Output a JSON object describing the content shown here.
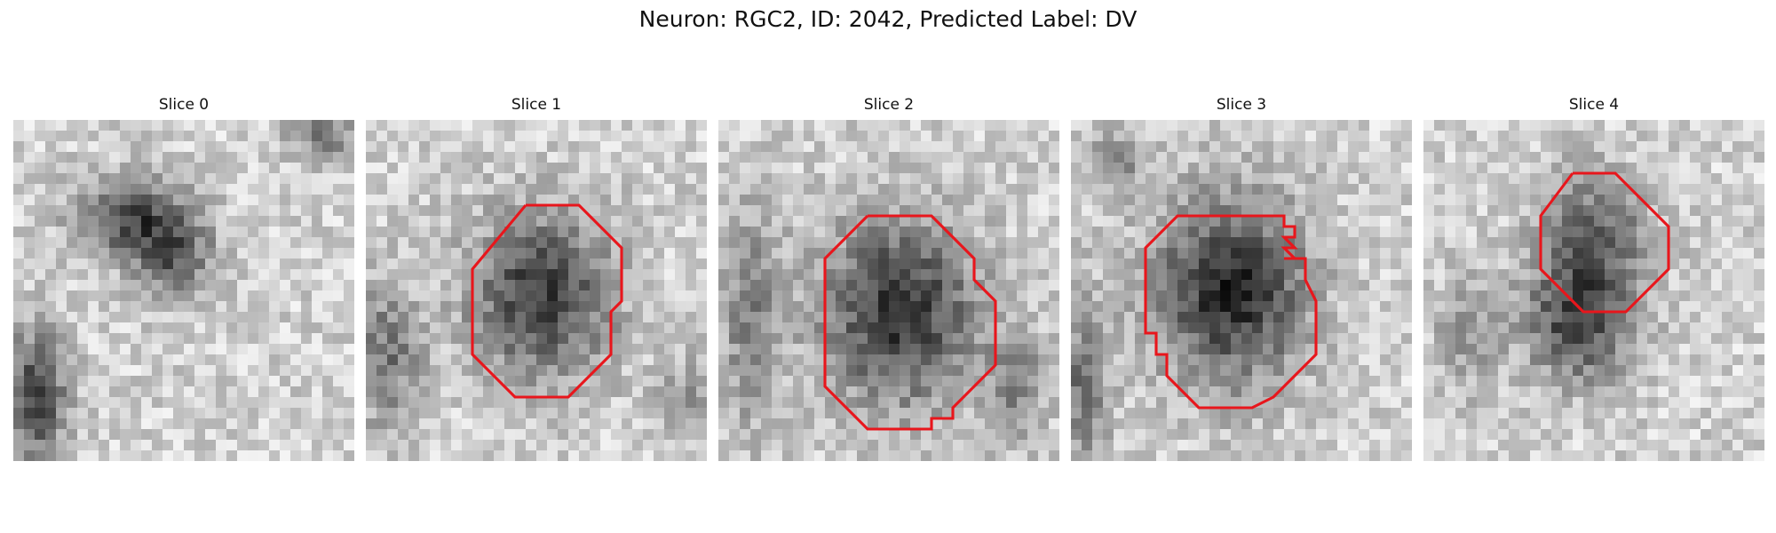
{
  "figure": {
    "title": "Neuron: RGC2, ID: 2042, Predicted Label: DV"
  },
  "contour_color": "#e8161c",
  "panels": [
    {
      "title": "Slice 0",
      "has_contour": false
    },
    {
      "title": "Slice 1",
      "has_contour": true
    },
    {
      "title": "Slice 2",
      "has_contour": true
    },
    {
      "title": "Slice 3",
      "has_contour": true
    },
    {
      "title": "Slice 4",
      "has_contour": true
    }
  ]
}
